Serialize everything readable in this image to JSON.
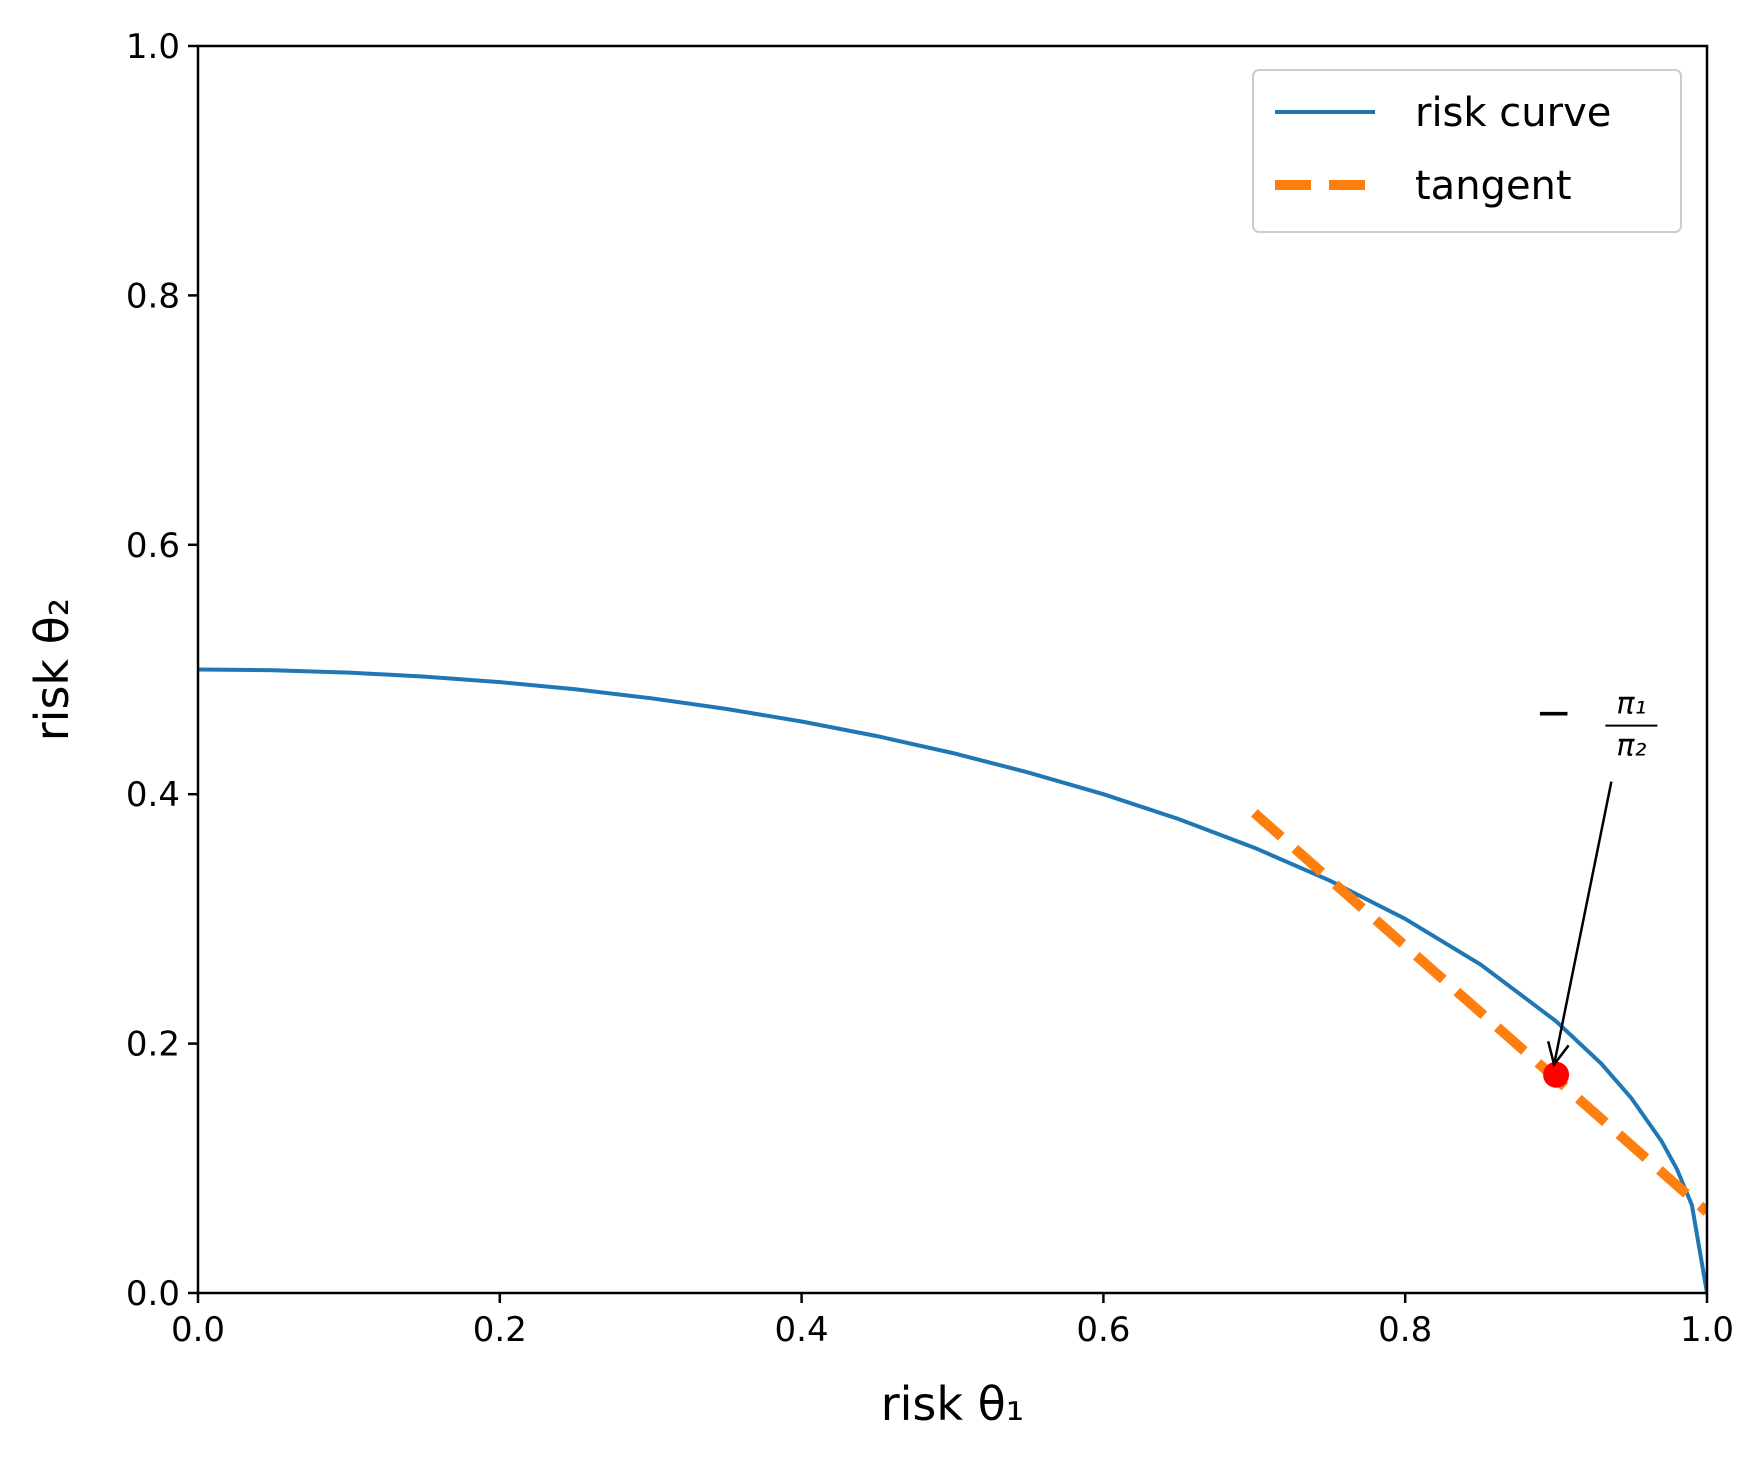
{
  "chart_data": {
    "type": "line",
    "xlabel": "risk θ₁",
    "ylabel": "risk θ₂",
    "xlim": [
      0.0,
      1.0
    ],
    "ylim": [
      0.0,
      1.0
    ],
    "xticks": [
      0.0,
      0.2,
      0.4,
      0.6,
      0.8,
      1.0
    ],
    "yticks": [
      0.0,
      0.2,
      0.4,
      0.6,
      0.8,
      1.0
    ],
    "xtick_labels": [
      "0.0",
      "0.2",
      "0.4",
      "0.6",
      "0.8",
      "1.0"
    ],
    "ytick_labels": [
      "0.0",
      "0.2",
      "0.4",
      "0.6",
      "0.8",
      "1.0"
    ],
    "grid": false,
    "legend_position": "top-right",
    "series": [
      {
        "name": "risk curve",
        "style": "solid",
        "color": "#1f77b4",
        "x": [
          0.0,
          0.05,
          0.1,
          0.15,
          0.2,
          0.25,
          0.3,
          0.35,
          0.4,
          0.45,
          0.5,
          0.55,
          0.6,
          0.65,
          0.7,
          0.75,
          0.8,
          0.85,
          0.9,
          0.93,
          0.95,
          0.97,
          0.98,
          0.99,
          1.0
        ],
        "y": [
          0.5,
          0.4994,
          0.4975,
          0.4943,
          0.4899,
          0.4841,
          0.477,
          0.4684,
          0.4583,
          0.4466,
          0.433,
          0.4175,
          0.4,
          0.38,
          0.3571,
          0.3307,
          0.3,
          0.2634,
          0.2179,
          0.1838,
          0.1561,
          0.1216,
          0.0995,
          0.0705,
          0.0
        ]
      },
      {
        "name": "tangent",
        "style": "dashed",
        "color": "#ff7f0e",
        "x": [
          0.7,
          1.0
        ],
        "y": [
          0.385,
          0.065
        ]
      }
    ],
    "point": {
      "x": 0.9,
      "y": 0.175,
      "color": "#ff0000"
    },
    "annotation": {
      "sign": "−",
      "numerator": "π₁",
      "denominator": "π₂",
      "text_x": 0.93,
      "text_y": 0.455,
      "arrow_to_x": 0.9,
      "arrow_to_y": 0.18
    }
  }
}
